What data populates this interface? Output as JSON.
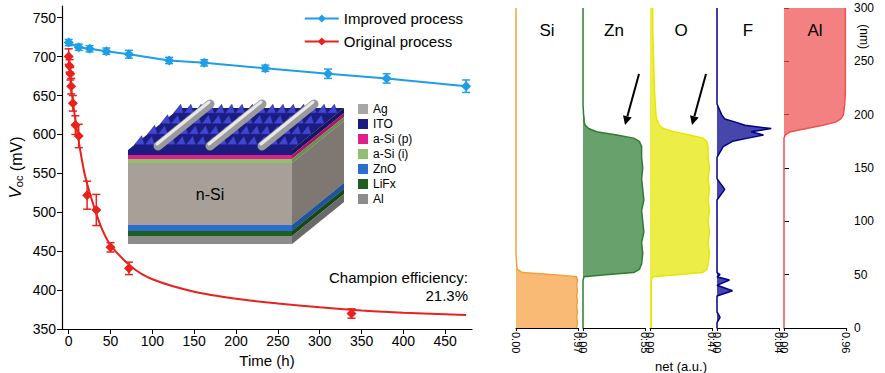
{
  "chart_data": [
    {
      "type": "line",
      "xlabel": "Time (h)",
      "ylabel": "Voc (mV)",
      "xlim": [
        -8,
        482
      ],
      "xticks": [
        0,
        50,
        100,
        150,
        200,
        250,
        300,
        350,
        400,
        450
      ],
      "ylim": [
        350,
        765
      ],
      "yticks": [
        350,
        400,
        450,
        500,
        550,
        600,
        650,
        700,
        750
      ],
      "grid": false,
      "legend": "top-right",
      "series": [
        {
          "name": "Improved process",
          "color": "#1f9ee8",
          "marker": "diamond",
          "line_style": "solid",
          "x": [
            0,
            12,
            25,
            45,
            72,
            120,
            162,
            235,
            310,
            380,
            475
          ],
          "values": [
            718,
            712,
            710,
            707,
            703,
            695,
            692,
            685,
            678,
            672,
            662
          ],
          "errors": [
            4,
            4,
            4,
            4,
            5,
            4,
            4,
            4,
            6,
            6,
            8
          ]
        },
        {
          "name": "Original process",
          "color": "#e8221c",
          "marker": "diamond",
          "line_style": "none",
          "x": [
            0,
            1,
            2,
            3,
            5,
            8,
            12,
            22,
            33,
            50,
            72,
            338
          ],
          "values": [
            700,
            688,
            678,
            662,
            640,
            612,
            598,
            522,
            503,
            455,
            428,
            370
          ],
          "errors": [
            10,
            8,
            8,
            10,
            10,
            12,
            15,
            18,
            20,
            6,
            8,
            6
          ],
          "curve_x": [
            0,
            2,
            5,
            10,
            15,
            20,
            30,
            40,
            50,
            75,
            100,
            150,
            200,
            250,
            300,
            350,
            400,
            475
          ],
          "curve_values": [
            705,
            672,
            642,
            605,
            572,
            545,
            508,
            478,
            458,
            430,
            414,
            398,
            389,
            383,
            378,
            374,
            371,
            368
          ]
        }
      ],
      "annotations": [
        "Champion efficiency: 21.3%"
      ],
      "inset": {
        "substrate": "n-Si",
        "layers": [
          {
            "name": "Ag",
            "color": "#a6a6a6"
          },
          {
            "name": "ITO",
            "color": "#1c1c80"
          },
          {
            "name": "a-Si (p)",
            "color": "#e0208a"
          },
          {
            "name": "a-Si (i)",
            "color": "#8fbf6f"
          },
          {
            "name": "ZnO",
            "color": "#2a6fcf"
          },
          {
            "name": "LiFx",
            "color": "#1f5f1f"
          },
          {
            "name": "Al",
            "color": "#8c8c8c"
          }
        ]
      }
    },
    {
      "type": "area",
      "xlabel": "net (a.u.)",
      "ylabel": "(nm)",
      "ylim": [
        0,
        300
      ],
      "yticks": [
        0,
        50,
        100,
        150,
        200,
        250,
        300
      ],
      "grid": false,
      "depth": [
        0,
        5,
        10,
        15,
        20,
        25,
        30,
        35,
        40,
        45,
        48,
        50,
        52,
        55,
        60,
        70,
        80,
        90,
        100,
        110,
        120,
        130,
        140,
        150,
        160,
        170,
        175,
        178,
        181,
        184,
        187,
        190,
        193,
        196,
        200,
        210,
        220,
        240,
        260,
        280,
        300
      ],
      "panels": [
        {
          "name": "Si",
          "color": "#f5a040",
          "xlim": [
            0,
            0.97
          ],
          "xticks": [
            {
              "value": 0,
              "label": "0.00"
            },
            0.97
          ],
          "values": [
            0.95,
            0.96,
            0.95,
            0.96,
            0.95,
            0.96,
            0.95,
            0.96,
            0.95,
            0.96,
            0.95,
            0.6,
            0.1,
            0.02,
            0.01,
            0,
            0,
            0,
            0,
            0,
            0,
            0,
            0,
            0,
            0,
            0,
            0,
            0,
            0,
            0,
            0,
            0,
            0,
            0,
            0,
            0,
            0,
            0,
            0,
            0,
            0
          ]
        },
        {
          "name": "Zn",
          "color": "#2e7d32",
          "xlim": [
            0,
            0.55
          ],
          "xticks": [
            {
              "value": 0,
              "label": "0.00"
            },
            0.55
          ],
          "values": [
            0,
            0,
            0,
            0,
            0,
            0,
            0,
            0,
            0,
            0,
            0.01,
            0.2,
            0.45,
            0.5,
            0.52,
            0.53,
            0.52,
            0.54,
            0.53,
            0.52,
            0.54,
            0.53,
            0.52,
            0.53,
            0.52,
            0.52,
            0.5,
            0.45,
            0.3,
            0.12,
            0.05,
            0.02,
            0.01,
            0.01,
            0.005,
            0,
            0,
            0,
            0,
            0,
            0
          ]
        },
        {
          "name": "O",
          "color": "#e6e600",
          "xlim": [
            0,
            0.47
          ],
          "xticks": [
            {
              "value": 0,
              "label": "0.00"
            },
            0.47
          ],
          "values": [
            0.01,
            0.01,
            0.01,
            0.01,
            0.01,
            0.01,
            0.01,
            0.01,
            0.01,
            0.01,
            0.02,
            0.2,
            0.4,
            0.43,
            0.44,
            0.45,
            0.44,
            0.45,
            0.44,
            0.45,
            0.44,
            0.45,
            0.44,
            0.45,
            0.44,
            0.44,
            0.43,
            0.4,
            0.3,
            0.18,
            0.1,
            0.07,
            0.06,
            0.05,
            0.045,
            0.04,
            0.035,
            0.03,
            0.025,
            0.02,
            0.02
          ]
        },
        {
          "name": "F",
          "color": "#00008b",
          "xlim": [
            0,
            0.04
          ],
          "xticks": [
            {
              "value": 0,
              "label": "0.00"
            },
            0.04
          ],
          "values": [
            0,
            0,
            0.002,
            0,
            0,
            0,
            0,
            0.01,
            0,
            0.008,
            0,
            0.002,
            0,
            0,
            0,
            0,
            0,
            0,
            0,
            0,
            0,
            0.005,
            0,
            0,
            0,
            0.004,
            0.01,
            0.02,
            0.03,
            0.022,
            0.035,
            0.018,
            0.012,
            0.005,
            0.003,
            0,
            0,
            0,
            0,
            0,
            0
          ]
        },
        {
          "name": "Al",
          "color": "#f05050",
          "xlim": [
            0,
            0.96
          ],
          "xticks": [
            {
              "value": 0,
              "label": "0.00"
            },
            0.96
          ],
          "values": [
            0,
            0,
            0,
            0,
            0,
            0,
            0,
            0,
            0,
            0,
            0,
            0,
            0,
            0,
            0,
            0,
            0,
            0,
            0,
            0,
            0,
            0,
            0,
            0,
            0,
            0,
            0,
            0,
            0.02,
            0.1,
            0.35,
            0.6,
            0.8,
            0.88,
            0.92,
            0.94,
            0.95,
            0.95,
            0.95,
            0.95,
            0.95
          ]
        }
      ]
    }
  ]
}
